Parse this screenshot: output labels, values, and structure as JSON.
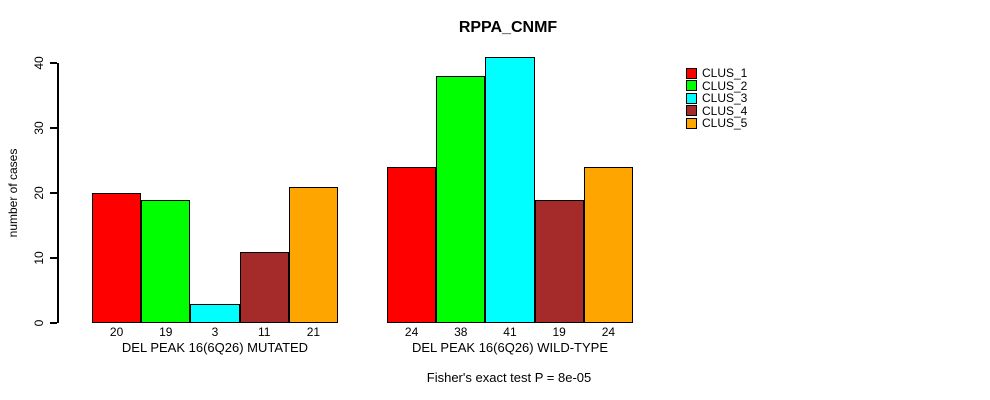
{
  "chart_data": {
    "type": "bar",
    "title": "RPPA_CNMF",
    "ylabel": "number of cases",
    "yticks": [
      0,
      10,
      20,
      30,
      40
    ],
    "ylim": [
      0,
      43
    ],
    "grid": false,
    "legend_position": "right-outside",
    "categories": [
      "DEL PEAK 16(6Q26) MUTATED",
      "DEL PEAK 16(6Q26) WILD-TYPE"
    ],
    "groups": [
      {
        "label": "DEL PEAK 16(6Q26) MUTATED",
        "values": [
          20,
          19,
          3,
          11,
          21
        ]
      },
      {
        "label": "DEL PEAK 16(6Q26) WILD-TYPE",
        "values": [
          24,
          38,
          41,
          19,
          24
        ]
      }
    ],
    "series": [
      {
        "name": "CLUS_1",
        "color": "#FF0000",
        "values": [
          20,
          24
        ]
      },
      {
        "name": "CLUS_2",
        "color": "#00FF00",
        "values": [
          19,
          38
        ]
      },
      {
        "name": "CLUS_3",
        "color": "#00FFFF",
        "values": [
          3,
          41
        ]
      },
      {
        "name": "CLUS_4",
        "color": "#A52A2A",
        "values": [
          11,
          19
        ]
      },
      {
        "name": "CLUS_5",
        "color": "#FFA500",
        "values": [
          21,
          24
        ]
      }
    ],
    "series_colors": [
      "#FF0000",
      "#00FF00",
      "#00FFFF",
      "#A52A2A",
      "#FFA500"
    ],
    "legend": [
      "CLUS_1",
      "CLUS_2",
      "CLUS_3",
      "CLUS_4",
      "CLUS_5"
    ],
    "footnote": "Fisher's exact test P = 8e-05",
    "axis_color": "#000000",
    "background": "#FFFFFF"
  }
}
